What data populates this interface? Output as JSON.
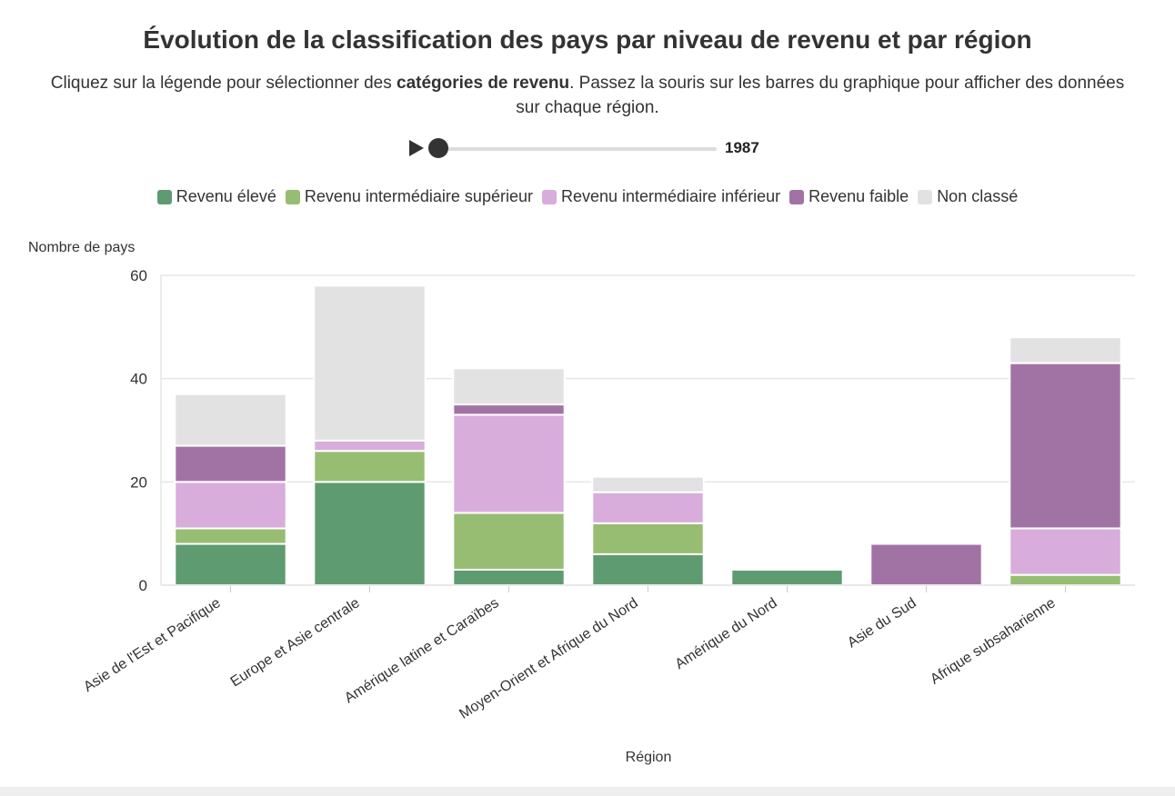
{
  "header": {
    "title": "Évolution de la classification des pays par niveau de revenu et par région",
    "subtitle_pre": "Cliquez sur la légende pour sélectionner des ",
    "subtitle_bold": "catégories de revenu",
    "subtitle_post": ". Passez la souris sur les barres du graphique pour afficher des données sur chaque région."
  },
  "player": {
    "year": "1987",
    "play_icon": "play-icon"
  },
  "colors": {
    "Revenu élevé": "#5f9b70",
    "Revenu intermédiaire supérieur": "#97bd72",
    "Revenu intermédiaire inférieur": "#d8addb",
    "Revenu faible": "#a173a5",
    "Non classé": "#e2e2e2"
  },
  "legend": [
    {
      "label": "Revenu élevé",
      "color": "#5f9b70"
    },
    {
      "label": "Revenu intermédiaire supérieur",
      "color": "#97bd72"
    },
    {
      "label": "Revenu intermédiaire inférieur",
      "color": "#d8addb"
    },
    {
      "label": "Revenu faible",
      "color": "#a173a5"
    },
    {
      "label": "Non classé",
      "color": "#e2e2e2"
    }
  ],
  "chart_data": {
    "type": "bar",
    "stacked": true,
    "ylabel": "Nombre de pays",
    "xlabel": "Région",
    "ylim": [
      0,
      60
    ],
    "yticks": [
      0,
      20,
      40,
      60
    ],
    "grid": true,
    "legend_position": "top",
    "categories": [
      "Asie de l'Est et Pacifique",
      "Europe et Asie centrale",
      "Amérique latine et Caraïbes",
      "Moyen-Orient et Afrique du Nord",
      "Amérique du Nord",
      "Asie du Sud",
      "Afrique subsaharienne"
    ],
    "series": [
      {
        "name": "Revenu élevé",
        "values": [
          8,
          20,
          3,
          6,
          3,
          0,
          0
        ]
      },
      {
        "name": "Revenu intermédiaire supérieur",
        "values": [
          3,
          6,
          11,
          6,
          0,
          0,
          2
        ]
      },
      {
        "name": "Revenu intermédiaire inférieur",
        "values": [
          9,
          2,
          19,
          6,
          0,
          0,
          9
        ]
      },
      {
        "name": "Revenu faible",
        "values": [
          7,
          0,
          2,
          0,
          0,
          8,
          32
        ]
      },
      {
        "name": "Non classé",
        "values": [
          10,
          30,
          7,
          3,
          0,
          0,
          5
        ]
      }
    ]
  }
}
